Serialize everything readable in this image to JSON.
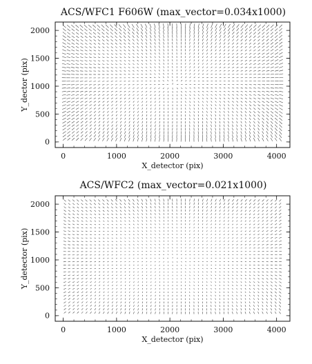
{
  "figure": {
    "background": "#ffffff",
    "ink": "#111111"
  },
  "chart_data": [
    {
      "type": "scatter",
      "title": "ACS/WFC1 F606W (max_vector=0.034x1000)",
      "xlabel": "X_detector (pix)",
      "ylabel": "Y_dector (pix)",
      "xlim": [
        -150,
        4250
      ],
      "ylim": [
        -100,
        2150
      ],
      "xticks": [
        0,
        1000,
        2000,
        3000,
        4000
      ],
      "yticks": [
        0,
        500,
        1000,
        1500,
        2000
      ],
      "x_tick_labels": [
        "0",
        "1000",
        "2000",
        "3000",
        "4000"
      ],
      "y_tick_labels": [
        "0",
        "500",
        "1000",
        "1500",
        "2000"
      ],
      "grid": false,
      "field": {
        "x_start": 50,
        "x_step": 80,
        "x_count": 51,
        "y_start": 70,
        "y_step": 60,
        "y_count": 34,
        "max_vector": 0.034,
        "scale": 1000
      }
    },
    {
      "type": "scatter",
      "title": "ACS/WFC2 (max_vector=0.021x1000)",
      "xlabel": "X_detector (pix)",
      "ylabel": "Y_detector (pix)",
      "xlim": [
        -150,
        4250
      ],
      "ylim": [
        -100,
        2150
      ],
      "xticks": [
        0,
        1000,
        2000,
        3000,
        4000
      ],
      "yticks": [
        0,
        500,
        1000,
        1500,
        2000
      ],
      "x_tick_labels": [
        "0",
        "1000",
        "2000",
        "3000",
        "4000"
      ],
      "y_tick_labels": [
        "0",
        "500",
        "1000",
        "1500",
        "2000"
      ],
      "grid": false,
      "field": {
        "x_start": 50,
        "x_step": 80,
        "x_count": 51,
        "y_start": 70,
        "y_step": 60,
        "y_count": 34,
        "max_vector": 0.021,
        "scale": 1000
      }
    }
  ]
}
